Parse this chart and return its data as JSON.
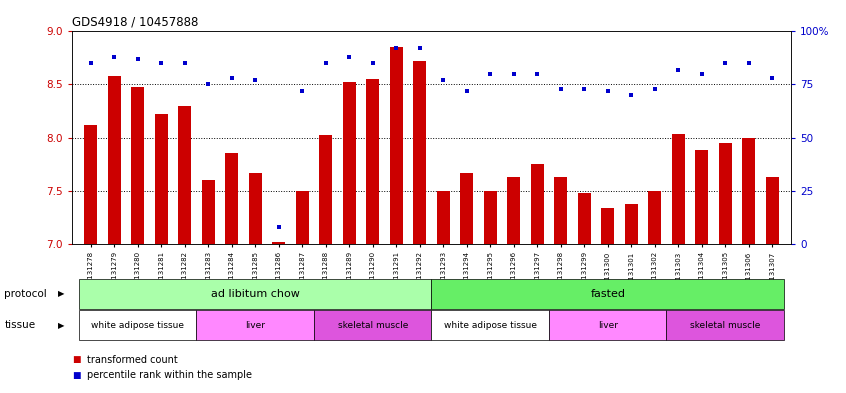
{
  "title": "GDS4918 / 10457888",
  "samples": [
    "GSM1131278",
    "GSM1131279",
    "GSM1131280",
    "GSM1131281",
    "GSM1131282",
    "GSM1131283",
    "GSM1131284",
    "GSM1131285",
    "GSM1131286",
    "GSM1131287",
    "GSM1131288",
    "GSM1131289",
    "GSM1131290",
    "GSM1131291",
    "GSM1131292",
    "GSM1131293",
    "GSM1131294",
    "GSM1131295",
    "GSM1131296",
    "GSM1131297",
    "GSM1131298",
    "GSM1131299",
    "GSM1131300",
    "GSM1131301",
    "GSM1131302",
    "GSM1131303",
    "GSM1131304",
    "GSM1131305",
    "GSM1131306",
    "GSM1131307"
  ],
  "red_values": [
    8.12,
    8.58,
    8.48,
    8.22,
    8.3,
    7.6,
    7.85,
    7.67,
    7.02,
    7.5,
    8.02,
    8.52,
    8.55,
    8.85,
    8.72,
    7.5,
    7.67,
    7.5,
    7.63,
    7.75,
    7.63,
    7.48,
    7.34,
    7.37,
    7.5,
    8.03,
    7.88,
    7.95,
    8.0,
    7.63
  ],
  "blue_values": [
    85,
    88,
    87,
    85,
    85,
    75,
    78,
    77,
    8,
    72,
    85,
    88,
    85,
    92,
    92,
    77,
    72,
    80,
    80,
    80,
    73,
    73,
    72,
    70,
    73,
    82,
    80,
    85,
    85,
    78
  ],
  "ylim_left": [
    7,
    9
  ],
  "ylim_right": [
    0,
    100
  ],
  "yticks_left": [
    7.0,
    7.5,
    8.0,
    8.5,
    9.0
  ],
  "yticks_right": [
    0,
    25,
    50,
    75,
    100
  ],
  "bar_color": "#cc0000",
  "dot_color": "#0000cc",
  "bar_bottom": 7,
  "protocol_labels": [
    "ad libitum chow",
    "fasted"
  ],
  "protocol_ranges": [
    [
      0,
      14
    ],
    [
      15,
      29
    ]
  ],
  "protocol_color_light": "#aaffaa",
  "protocol_color_medium": "#66ee66",
  "tissue_segments": [
    {
      "label": "white adipose tissue",
      "start": 0,
      "end": 4,
      "color": "#ffffff"
    },
    {
      "label": "liver",
      "start": 5,
      "end": 9,
      "color": "#ff88ff"
    },
    {
      "label": "skeletal muscle",
      "start": 10,
      "end": 14,
      "color": "#dd55dd"
    },
    {
      "label": "white adipose tissue",
      "start": 15,
      "end": 19,
      "color": "#ffffff"
    },
    {
      "label": "liver",
      "start": 20,
      "end": 24,
      "color": "#ff88ff"
    },
    {
      "label": "skeletal muscle",
      "start": 25,
      "end": 29,
      "color": "#dd55dd"
    }
  ],
  "legend_items": [
    {
      "label": "transformed count",
      "color": "#cc0000"
    },
    {
      "label": "percentile rank within the sample",
      "color": "#0000cc"
    }
  ]
}
